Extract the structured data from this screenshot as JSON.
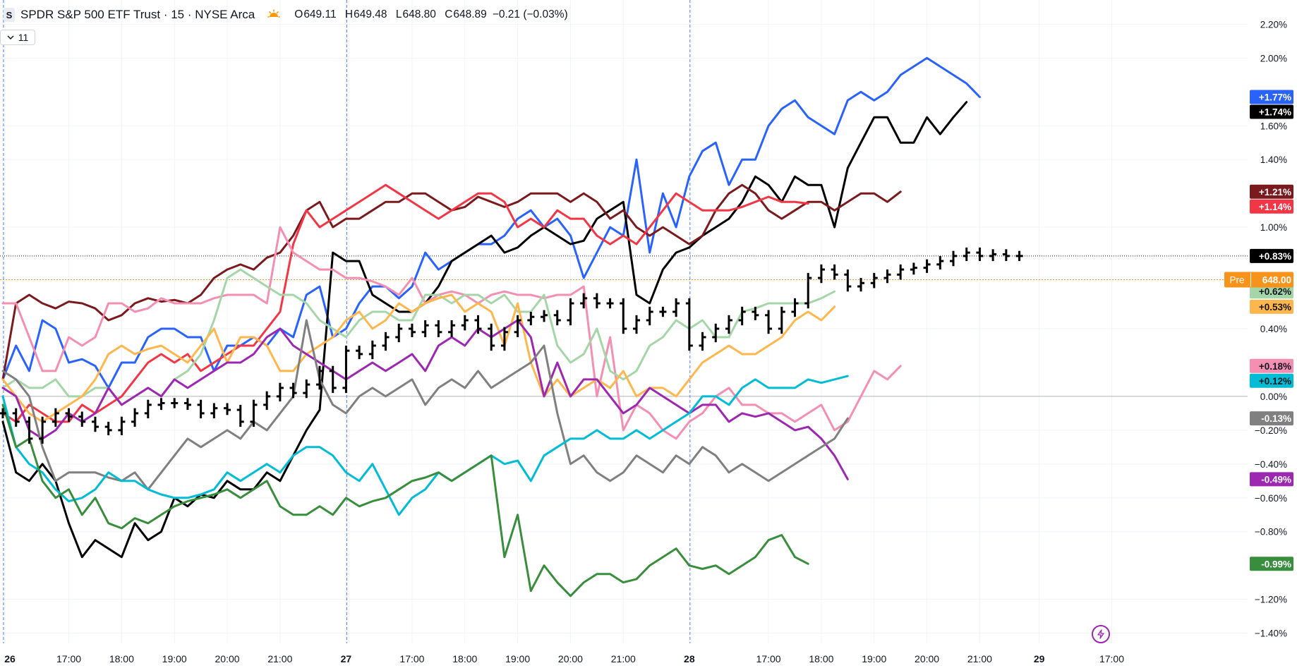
{
  "header": {
    "symbol_logo": "S",
    "title": "SPDR S&P 500 ETF Trust · 15 · NYSE Arca",
    "session_icon": "sun-icon",
    "ohlc": [
      {
        "key": "O",
        "value": "649.11"
      },
      {
        "key": "H",
        "value": "649.48"
      },
      {
        "key": "L",
        "value": "648.80"
      },
      {
        "key": "C",
        "value": "648.89"
      }
    ],
    "change": "−0.21 (−0.03%)"
  },
  "indicators_toggle": {
    "count": "11",
    "icon": "chevron-down-icon"
  },
  "footer_icon": "lightning-icon",
  "chart_data": {
    "type": "line",
    "y_axis": {
      "unit": "%",
      "range": [
        -1.46,
        2.26
      ],
      "ticks": [
        "2.20%",
        "2.00%",
        "1.60%",
        "1.40%",
        "1.00%",
        "0.40%",
        "0.00%",
        "−0.20%",
        "−0.40%",
        "−0.60%",
        "−0.80%",
        "−1.20%",
        "−1.40%"
      ],
      "tick_values": [
        2.2,
        2.0,
        1.6,
        1.4,
        1.0,
        0.4,
        0.0,
        -0.2,
        -0.4,
        -0.6,
        -0.8,
        -1.2,
        -1.4
      ]
    },
    "x_axis": {
      "index_range": [
        0,
        96
      ],
      "ticks": [
        {
          "label": "26",
          "index": 0,
          "bold": true
        },
        {
          "label": "17:00",
          "index": 5
        },
        {
          "label": "18:00",
          "index": 9
        },
        {
          "label": "19:00",
          "index": 13
        },
        {
          "label": "20:00",
          "index": 17
        },
        {
          "label": "21:00",
          "index": 21
        },
        {
          "label": "27",
          "index": 26,
          "bold": true
        },
        {
          "label": "17:00",
          "index": 31
        },
        {
          "label": "18:00",
          "index": 35
        },
        {
          "label": "19:00",
          "index": 39
        },
        {
          "label": "20:00",
          "index": 43
        },
        {
          "label": "21:00",
          "index": 47
        },
        {
          "label": "28",
          "index": 52,
          "bold": true
        },
        {
          "label": "17:00",
          "index": 58
        },
        {
          "label": "18:00",
          "index": 62
        },
        {
          "label": "19:00",
          "index": 66
        },
        {
          "label": "20:00",
          "index": 70
        },
        {
          "label": "21:00",
          "index": 74
        },
        {
          "label": "29",
          "index": 78.5,
          "bold": true
        },
        {
          "label": "17:00",
          "index": 84
        }
      ],
      "session_breaks": [
        0,
        26,
        52
      ]
    },
    "zero_line": 0,
    "last_price_line": 0.83,
    "pre_market_line": {
      "label": "Pre",
      "price": "648.00",
      "value": 0.69,
      "color": "#f7931a"
    },
    "main_series": {
      "name": "SPY",
      "style": "bars",
      "color": "#000000",
      "last_label": "+0.83%",
      "closes": [
        -0.1,
        -0.15,
        -0.25,
        -0.15,
        -0.1,
        -0.12,
        -0.15,
        -0.18,
        -0.2,
        -0.15,
        -0.1,
        -0.05,
        -0.04,
        -0.04,
        -0.05,
        -0.1,
        -0.07,
        -0.08,
        -0.15,
        -0.05,
        0,
        0.05,
        0.02,
        0.07,
        0.15,
        0.05,
        0.27,
        0.25,
        0.3,
        0.35,
        0.4,
        0.38,
        0.42,
        0.38,
        0.42,
        0.45,
        0.4,
        0.3,
        0.38,
        0.45,
        0.47,
        0.48,
        0.45,
        0.55,
        0.58,
        0.55,
        0.55,
        0.4,
        0.45,
        0.5,
        0.5,
        0.55,
        0.3,
        0.35,
        0.4,
        0.45,
        0.5,
        0.48,
        0.4,
        0.5,
        0.55,
        0.7,
        0.75,
        0.72,
        0.65,
        0.67,
        0.7,
        0.72,
        0.75,
        0.76,
        0.78,
        0.8,
        0.83,
        0.85,
        0.83,
        0.84,
        0.83,
        0.83
      ]
    },
    "series": [
      {
        "color": "#2962ff",
        "last_label": "+1.77%",
        "values": [
          0.1,
          0.3,
          0.15,
          0.45,
          0.4,
          0.2,
          0.22,
          0.18,
          0.05,
          0.2,
          0.2,
          0.35,
          0.4,
          0.4,
          0.35,
          0.35,
          0.15,
          0.3,
          0.3,
          0.35,
          0.3,
          0.4,
          0.35,
          0.6,
          0.65,
          0.35,
          0.4,
          0.55,
          0.65,
          0.65,
          0.58,
          0.65,
          0.85,
          0.75,
          0.8,
          0.85,
          0.9,
          0.9,
          0.95,
          1.05,
          1.1,
          1.0,
          1.05,
          0.95,
          0.7,
          0.85,
          1.0,
          0.95,
          1.4,
          0.85,
          1.2,
          1.0,
          1.3,
          1.45,
          1.5,
          1.25,
          1.4,
          1.4,
          1.6,
          1.7,
          1.75,
          1.65,
          1.6,
          1.55,
          1.75,
          1.8,
          1.75,
          1.8,
          1.9,
          1.95,
          2.0,
          1.95,
          1.9,
          1.85,
          1.77
        ]
      },
      {
        "color": "#000000",
        "last_label": "+1.74%",
        "values": [
          -0.15,
          -0.45,
          -0.5,
          -0.4,
          -0.5,
          -0.75,
          -0.95,
          -0.85,
          -0.9,
          -0.95,
          -0.75,
          -0.85,
          -0.8,
          -0.6,
          -0.65,
          -0.58,
          -0.6,
          -0.5,
          -0.55,
          -0.55,
          -0.45,
          -0.5,
          -0.35,
          -0.2,
          -0.08,
          0.85,
          0.8,
          0.8,
          0.6,
          0.55,
          0.5,
          0.5,
          0.55,
          0.65,
          0.8,
          0.85,
          0.9,
          0.95,
          0.85,
          0.88,
          0.95,
          1.0,
          0.95,
          0.9,
          0.92,
          1.05,
          1.1,
          1.15,
          0.6,
          0.55,
          0.75,
          0.85,
          0.88,
          0.95,
          1.0,
          1.05,
          1.15,
          1.3,
          1.25,
          1.15,
          1.3,
          1.25,
          1.25,
          1.0,
          1.35,
          1.5,
          1.65,
          1.65,
          1.5,
          1.5,
          1.65,
          1.55,
          1.65,
          1.74
        ]
      },
      {
        "color": "#7b1a1d",
        "last_label": "+1.21%",
        "values": [
          0.1,
          0.55,
          0.6,
          0.55,
          0.52,
          0.56,
          0.55,
          0.52,
          0.45,
          0.48,
          0.55,
          0.58,
          0.56,
          0.57,
          0.55,
          0.6,
          0.7,
          0.75,
          0.78,
          0.75,
          0.82,
          0.85,
          0.95,
          1.1,
          1.15,
          1.0,
          1.05,
          1.05,
          1.1,
          1.15,
          1.15,
          1.2,
          1.2,
          1.15,
          1.1,
          1.12,
          1.18,
          1.15,
          1.12,
          1.15,
          1.2,
          1.2,
          1.2,
          1.15,
          1.2,
          1.15,
          1.05,
          1.1,
          1.0,
          0.95,
          1.0,
          0.95,
          0.9,
          0.95,
          1.1,
          1.2,
          1.25,
          1.2,
          1.1,
          1.05,
          1.1,
          1.15,
          1.15,
          1.1,
          1.15,
          1.2,
          1.2,
          1.15,
          1.21
        ]
      },
      {
        "color": "#f23645",
        "last_label": "+1.14%",
        "values": [
          -0.1,
          -0.15,
          -0.05,
          -0.1,
          -0.15,
          -0.15,
          -0.05,
          -0.1,
          -0.05,
          0,
          0.1,
          0.2,
          0.25,
          0.2,
          0.25,
          0.15,
          0.2,
          0.25,
          0.3,
          0.3,
          0.4,
          0.5,
          0.9,
          1.1,
          1.0,
          1.05,
          1.1,
          1.15,
          1.2,
          1.25,
          1.2,
          1.15,
          1.1,
          1.05,
          1.1,
          1.15,
          1.2,
          1.2,
          1.15,
          1.0,
          1.05,
          1.0,
          1.1,
          1.05,
          1.05,
          0.95,
          0.9,
          0.95,
          0.9,
          1.0,
          1.1,
          1.2,
          1.15,
          1.1,
          1.1,
          1.1,
          1.12,
          1.15,
          1.18,
          1.15,
          1.15,
          1.14
        ]
      },
      {
        "color": "#f48fb1",
        "last_label": "+0.18%",
        "values": [
          0.55,
          0.55,
          0.35,
          0.15,
          0.15,
          0.35,
          0.3,
          0.35,
          0.55,
          0.55,
          0.5,
          0.52,
          0.58,
          0.55,
          0.55,
          0.55,
          0.58,
          0.6,
          0.6,
          0.6,
          0.55,
          1.0,
          0.85,
          0.8,
          0.75,
          0.75,
          0.7,
          0.7,
          0.68,
          0.65,
          0.6,
          0.7,
          0.55,
          0.6,
          0.62,
          0.6,
          0.55,
          0.6,
          0.62,
          0.6,
          0.6,
          0.58,
          0.6,
          0.6,
          0.65,
          0.0,
          0.35,
          -0.2,
          -0.05,
          -0.1,
          -0.2,
          -0.25,
          -0.15,
          -0.1,
          0,
          0.05,
          -0.05,
          -0.05,
          -0.1,
          -0.1,
          -0.15,
          -0.1,
          -0.05,
          -0.2,
          -0.15,
          0,
          0.15,
          0.1,
          0.18
        ]
      },
      {
        "color": "#a5d6a7",
        "last_label": "+0.62%",
        "values": [
          0.05,
          0.1,
          0.05,
          0.05,
          0.1,
          0.0,
          0.0,
          0.05,
          0.05,
          -0.05,
          0.0,
          0.05,
          0.0,
          0.1,
          0.15,
          0.25,
          0.45,
          0.7,
          0.75,
          0.7,
          0.65,
          0.6,
          0.6,
          0.55,
          0.45,
          0.4,
          0.35,
          0.45,
          0.5,
          0.5,
          0.45,
          0.45,
          0.6,
          0.6,
          0.55,
          0.6,
          0.6,
          0.55,
          0.6,
          0.5,
          0.5,
          0.6,
          0.3,
          0.2,
          0.25,
          0.4,
          0.15,
          0.1,
          0.15,
          0.3,
          0.35,
          0.45,
          0.4,
          0.45,
          0.35,
          0.35,
          0.5,
          0.52,
          0.55,
          0.55,
          0.55,
          0.55,
          0.58,
          0.62
        ]
      },
      {
        "color": "#ffb74d",
        "last_label": "+0.53%",
        "values": [
          0.1,
          0.0,
          -0.1,
          -0.15,
          -0.1,
          -0.05,
          0.0,
          0.1,
          0.25,
          0.3,
          0.25,
          0.28,
          0.3,
          0.25,
          0.2,
          0.3,
          0.4,
          0.2,
          0.35,
          0.35,
          0.3,
          0.15,
          0.15,
          0.25,
          0.3,
          0.35,
          0.45,
          0.5,
          0.4,
          0.45,
          0.55,
          0.5,
          0.55,
          0.58,
          0.6,
          0.5,
          0.55,
          0.5,
          0.3,
          0.55,
          0.2,
          0.0,
          0.1,
          0.0,
          0.05,
          0.1,
          0.05,
          0.15,
          0.0,
          0.05,
          0.05,
          0.0,
          0.1,
          0.2,
          0.25,
          0.3,
          0.25,
          0.25,
          0.3,
          0.35,
          0.45,
          0.5,
          0.45,
          0.53
        ]
      },
      {
        "color": "#9c27b0",
        "last_label": "-0.49%",
        "values": [
          0.05,
          0.0,
          -0.2,
          -0.25,
          -0.2,
          -0.1,
          -0.15,
          -0.1,
          0.05,
          -0.05,
          0.0,
          0.05,
          0.0,
          0.1,
          0.05,
          0.1,
          0.15,
          0.2,
          0.2,
          0.25,
          0.35,
          0.4,
          0.3,
          0.25,
          0.2,
          0.15,
          0.1,
          0.15,
          0.2,
          0.15,
          0.2,
          0.25,
          0.15,
          0.3,
          0.35,
          0.3,
          0.4,
          0.35,
          0.4,
          0.45,
          0.35,
          0.0,
          0.2,
          0.0,
          0.1,
          0.1,
          0.0,
          -0.1,
          -0.05,
          0.05,
          0.0,
          -0.05,
          -0.1,
          -0.05,
          -0.05,
          -0.15,
          -0.1,
          -0.12,
          -0.1,
          -0.15,
          -0.2,
          -0.18,
          -0.25,
          -0.35,
          -0.49
        ]
      },
      {
        "color": "#808080",
        "last_label": "-0.13%",
        "values": [
          0.15,
          0.1,
          0.0,
          -0.3,
          -0.5,
          -0.45,
          -0.45,
          -0.45,
          -0.48,
          -0.5,
          -0.45,
          -0.55,
          -0.45,
          -0.35,
          -0.25,
          -0.3,
          -0.25,
          -0.2,
          -0.25,
          -0.15,
          -0.2,
          -0.1,
          0.0,
          0.45,
          0.1,
          -0.05,
          -0.1,
          0.0,
          0.05,
          0.0,
          0.05,
          0.1,
          -0.05,
          0.05,
          0.1,
          0.05,
          0.15,
          0.05,
          0.1,
          0.15,
          0.2,
          0.3,
          -0.1,
          -0.4,
          -0.35,
          -0.45,
          -0.5,
          -0.45,
          -0.35,
          -0.4,
          -0.45,
          -0.35,
          -0.4,
          -0.3,
          -0.35,
          -0.45,
          -0.4,
          -0.45,
          -0.5,
          -0.45,
          -0.4,
          -0.35,
          -0.3,
          -0.25,
          -0.13
        ]
      },
      {
        "color": "#00bcd4",
        "last_label": "+0.12%",
        "values": [
          0.0,
          -0.3,
          -0.4,
          -0.45,
          -0.55,
          -0.62,
          -0.6,
          -0.55,
          -0.45,
          -0.5,
          -0.5,
          -0.55,
          -0.58,
          -0.6,
          -0.6,
          -0.58,
          -0.55,
          -0.45,
          -0.5,
          -0.45,
          -0.4,
          -0.45,
          -0.35,
          -0.3,
          -0.3,
          -0.35,
          -0.45,
          -0.5,
          -0.4,
          -0.55,
          -0.7,
          -0.6,
          -0.55,
          -0.45,
          -0.5,
          -0.45,
          -0.4,
          -0.35,
          -0.4,
          -0.38,
          -0.5,
          -0.35,
          -0.3,
          -0.25,
          -0.25,
          -0.2,
          -0.25,
          -0.25,
          -0.2,
          -0.25,
          -0.2,
          -0.15,
          -0.1,
          0.0,
          0.0,
          -0.05,
          0.05,
          0.1,
          0.05,
          0.05,
          0.05,
          0.1,
          0.08,
          0.1,
          0.12
        ]
      },
      {
        "color": "#388e3c",
        "last_label": "-0.99%",
        "values": [
          -0.05,
          -0.3,
          -0.25,
          -0.5,
          -0.6,
          -0.55,
          -0.7,
          -0.6,
          -0.75,
          -0.78,
          -0.72,
          -0.75,
          -0.7,
          -0.65,
          -0.62,
          -0.6,
          -0.58,
          -0.55,
          -0.6,
          -0.55,
          -0.5,
          -0.65,
          -0.7,
          -0.7,
          -0.65,
          -0.7,
          -0.6,
          -0.65,
          -0.62,
          -0.6,
          -0.55,
          -0.5,
          -0.48,
          -0.45,
          -0.5,
          -0.45,
          -0.4,
          -0.35,
          -0.95,
          -0.7,
          -1.15,
          -1.0,
          -1.1,
          -1.18,
          -1.1,
          -1.05,
          -1.05,
          -1.1,
          -1.08,
          -1.0,
          -0.95,
          -0.9,
          -1.0,
          -1.02,
          -1.0,
          -1.05,
          -1.0,
          -0.95,
          -0.85,
          -0.82,
          -0.95,
          -0.99
        ]
      }
    ]
  }
}
